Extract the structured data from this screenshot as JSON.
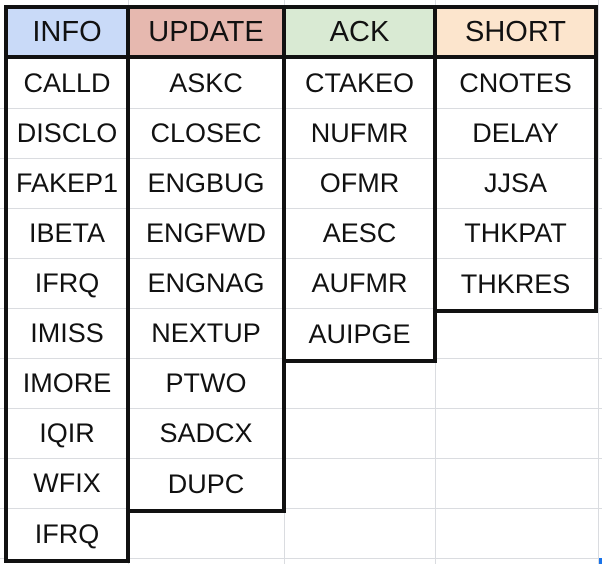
{
  "columns": [
    {
      "header": "INFO",
      "header_color": "#c9daf8",
      "items": [
        "CALLD",
        "DISCLO",
        "FAKEP1",
        "IBETA",
        "IFRQ",
        "IMISS",
        "IMORE",
        "IQIR",
        "WFIX",
        "IFRQ"
      ]
    },
    {
      "header": "UPDATE",
      "header_color": "#e6b8af",
      "items": [
        "ASKC",
        "CLOSEC",
        "ENGBUG",
        "ENGFWD",
        "ENGNAG",
        "NEXTUP",
        "PTWO",
        "SADCX",
        "DUPC"
      ]
    },
    {
      "header": "ACK",
      "header_color": "#d9ead3",
      "items": [
        "CTAKEO",
        "NUFMR",
        "OFMR",
        "AESC",
        "AUFMR",
        "AUIPGE"
      ]
    },
    {
      "header": "SHORT",
      "header_color": "#fce5cd",
      "items": [
        "CNOTES",
        "DELAY",
        "JJSA",
        "THKPAT",
        "THKRES"
      ]
    }
  ]
}
